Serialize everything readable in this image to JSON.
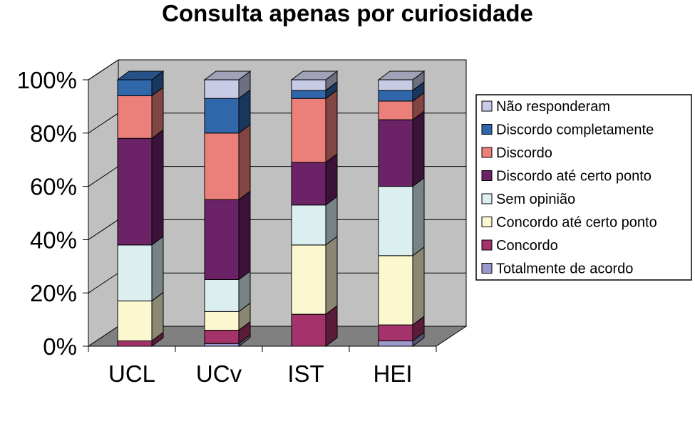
{
  "chart_data": {
    "type": "bar",
    "stacked": true,
    "percent": true,
    "title": "Consulta apenas por curiosidade",
    "categories": [
      "UCL",
      "UCv",
      "IST",
      "HEI"
    ],
    "yticks": [
      "0%",
      "20%",
      "40%",
      "60%",
      "80%",
      "100%"
    ],
    "ylim": [
      0,
      100
    ],
    "legend_position": "right",
    "series": [
      {
        "name": "Totalmente de acordo",
        "color": "#9999cc",
        "values": [
          0,
          1,
          0,
          2
        ]
      },
      {
        "name": "Concordo",
        "color": "#a3336a",
        "values": [
          2,
          5,
          12,
          6
        ]
      },
      {
        "name": "Concordo até certo ponto",
        "color": "#fbf7cf",
        "values": [
          15,
          7,
          26,
          26
        ]
      },
      {
        "name": "Sem opinião",
        "color": "#dbeff1",
        "values": [
          21,
          12,
          15,
          26
        ]
      },
      {
        "name": "Discordo até certo ponto",
        "color": "#6b2266",
        "values": [
          40,
          30,
          16,
          25
        ]
      },
      {
        "name": "Discordo",
        "color": "#ea8079",
        "values": [
          16,
          25,
          24,
          7
        ]
      },
      {
        "name": "Discordo completamente",
        "color": "#3066aa",
        "values": [
          6,
          13,
          3,
          4
        ]
      },
      {
        "name": "Não responderam",
        "color": "#c8cbe6",
        "values": [
          0,
          7,
          4,
          4
        ]
      }
    ],
    "wall_color": "#c0c0c0",
    "floor_color": "#808080"
  }
}
